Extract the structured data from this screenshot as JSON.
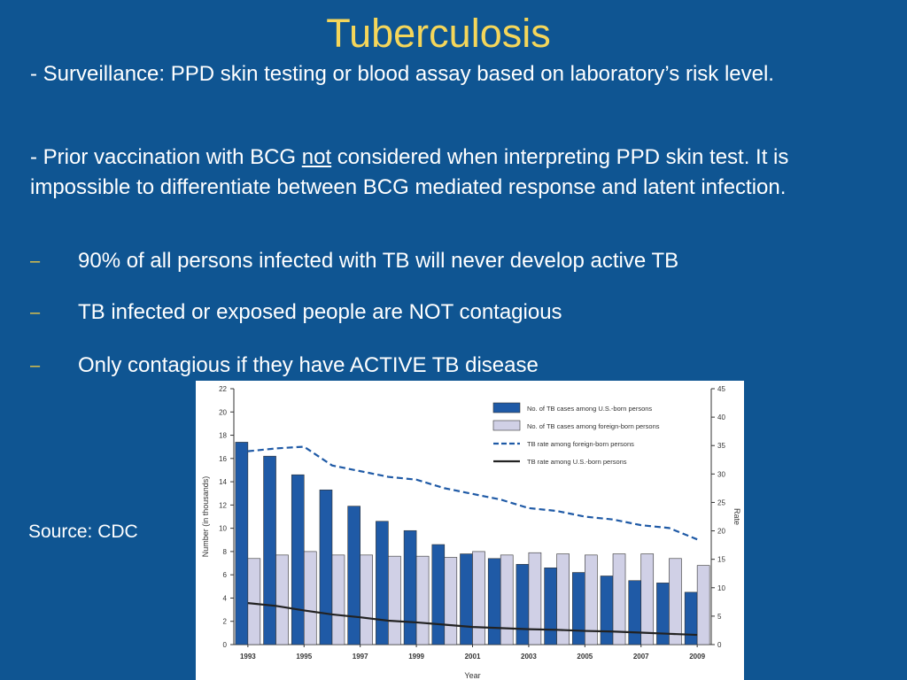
{
  "title": "Tuberculosis",
  "paragraphs": {
    "p1": "- Surveillance: PPD skin testing or blood assay based on laboratory’s risk level.",
    "p2_a": "- Prior vaccination with BCG ",
    "p2_underline": "not",
    "p2_b": " considered when interpreting PPD skin test. It is impossible to differentiate between BCG mediated response and latent infection."
  },
  "bullets": [
    {
      "marker": "–",
      "text": "90% of all persons infected with TB will never develop active TB"
    },
    {
      "marker": "–",
      "text": "TB infected or exposed people are NOT contagious"
    },
    {
      "marker": "–",
      "text": "Only contagious if they have ACTIVE TB disease"
    }
  ],
  "source": "Source: CDC",
  "colors": {
    "background": "#0f5592",
    "title": "#f5d65a",
    "bar_us": "#1f5aa6",
    "bar_foreign": "#d0d0e6",
    "line_foreign": "#1f5aa6",
    "line_us": "#222222"
  },
  "chart_data": {
    "type": "bar",
    "xlabel": "Year",
    "ylabel": "Number (in thousands)",
    "y2label": "Rate",
    "ylim": [
      0,
      22
    ],
    "y2lim": [
      0,
      45
    ],
    "yticks": [
      0,
      2,
      4,
      6,
      8,
      10,
      12,
      14,
      16,
      18,
      20,
      22
    ],
    "y2ticks": [
      0,
      5,
      10,
      15,
      20,
      25,
      30,
      35,
      40,
      45
    ],
    "categories": [
      1993,
      1994,
      1995,
      1996,
      1997,
      1998,
      1999,
      2000,
      2001,
      2002,
      2003,
      2004,
      2005,
      2006,
      2007,
      2008,
      2009
    ],
    "xtick_labels": [
      "1993",
      "1995",
      "1997",
      "1999",
      "2001",
      "2003",
      "2005",
      "2007",
      "2009"
    ],
    "legend_position": "top-right",
    "series": [
      {
        "name": "No. of TB cases among U.S.-born persons",
        "kind": "bar",
        "axis": "left",
        "values": [
          17.4,
          16.2,
          14.6,
          13.3,
          11.9,
          10.6,
          9.8,
          8.6,
          7.8,
          7.4,
          6.9,
          6.6,
          6.2,
          5.9,
          5.5,
          5.3,
          4.5
        ]
      },
      {
        "name": "No. of TB cases among foreign-born persons",
        "kind": "bar",
        "axis": "left",
        "values": [
          7.4,
          7.7,
          8.0,
          7.7,
          7.7,
          7.6,
          7.6,
          7.5,
          8.0,
          7.7,
          7.9,
          7.8,
          7.7,
          7.8,
          7.8,
          7.4,
          6.8
        ]
      },
      {
        "name": "TB rate among foreign-born persons",
        "kind": "line",
        "style": "dashed",
        "axis": "right",
        "values": [
          34.0,
          34.5,
          34.8,
          31.5,
          30.5,
          29.5,
          29.0,
          27.5,
          26.5,
          25.5,
          24.0,
          23.5,
          22.5,
          22.0,
          21.0,
          20.5,
          18.5
        ]
      },
      {
        "name": "TB rate among U.S.-born persons",
        "kind": "line",
        "style": "solid",
        "axis": "right",
        "values": [
          7.3,
          6.8,
          6.0,
          5.3,
          4.8,
          4.2,
          3.9,
          3.5,
          3.1,
          2.9,
          2.7,
          2.6,
          2.4,
          2.3,
          2.1,
          1.9,
          1.7
        ]
      }
    ]
  }
}
